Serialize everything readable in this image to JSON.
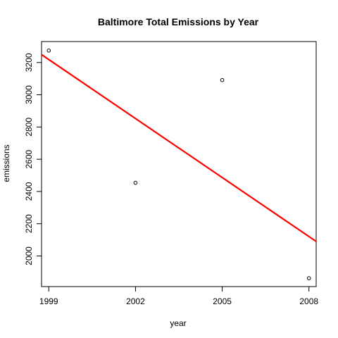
{
  "chart_data": {
    "type": "scatter",
    "title": "Baltimore Total Emissions by Year",
    "xlabel": "year",
    "ylabel": "emissions",
    "xlim": [
      1998.75,
      2008.25
    ],
    "ylim": [
      1810,
      3330
    ],
    "x_ticks": [
      1999,
      2002,
      2005,
      2008
    ],
    "y_ticks": [
      2000,
      2200,
      2400,
      2600,
      2800,
      3000,
      3200
    ],
    "grid": false,
    "legend": "none",
    "points": [
      {
        "x": 1999,
        "y": 3274
      },
      {
        "x": 2002,
        "y": 2454
      },
      {
        "x": 2005,
        "y": 3091
      },
      {
        "x": 2008,
        "y": 1862
      }
    ],
    "trend_line": {
      "type": "linear-fit",
      "color": "#ff0000",
      "from": {
        "x": 1998.75,
        "y": 3249
      },
      "to": {
        "x": 2008.25,
        "y": 2090
      }
    },
    "point_color": "#000000",
    "axis_color": "#000000"
  }
}
